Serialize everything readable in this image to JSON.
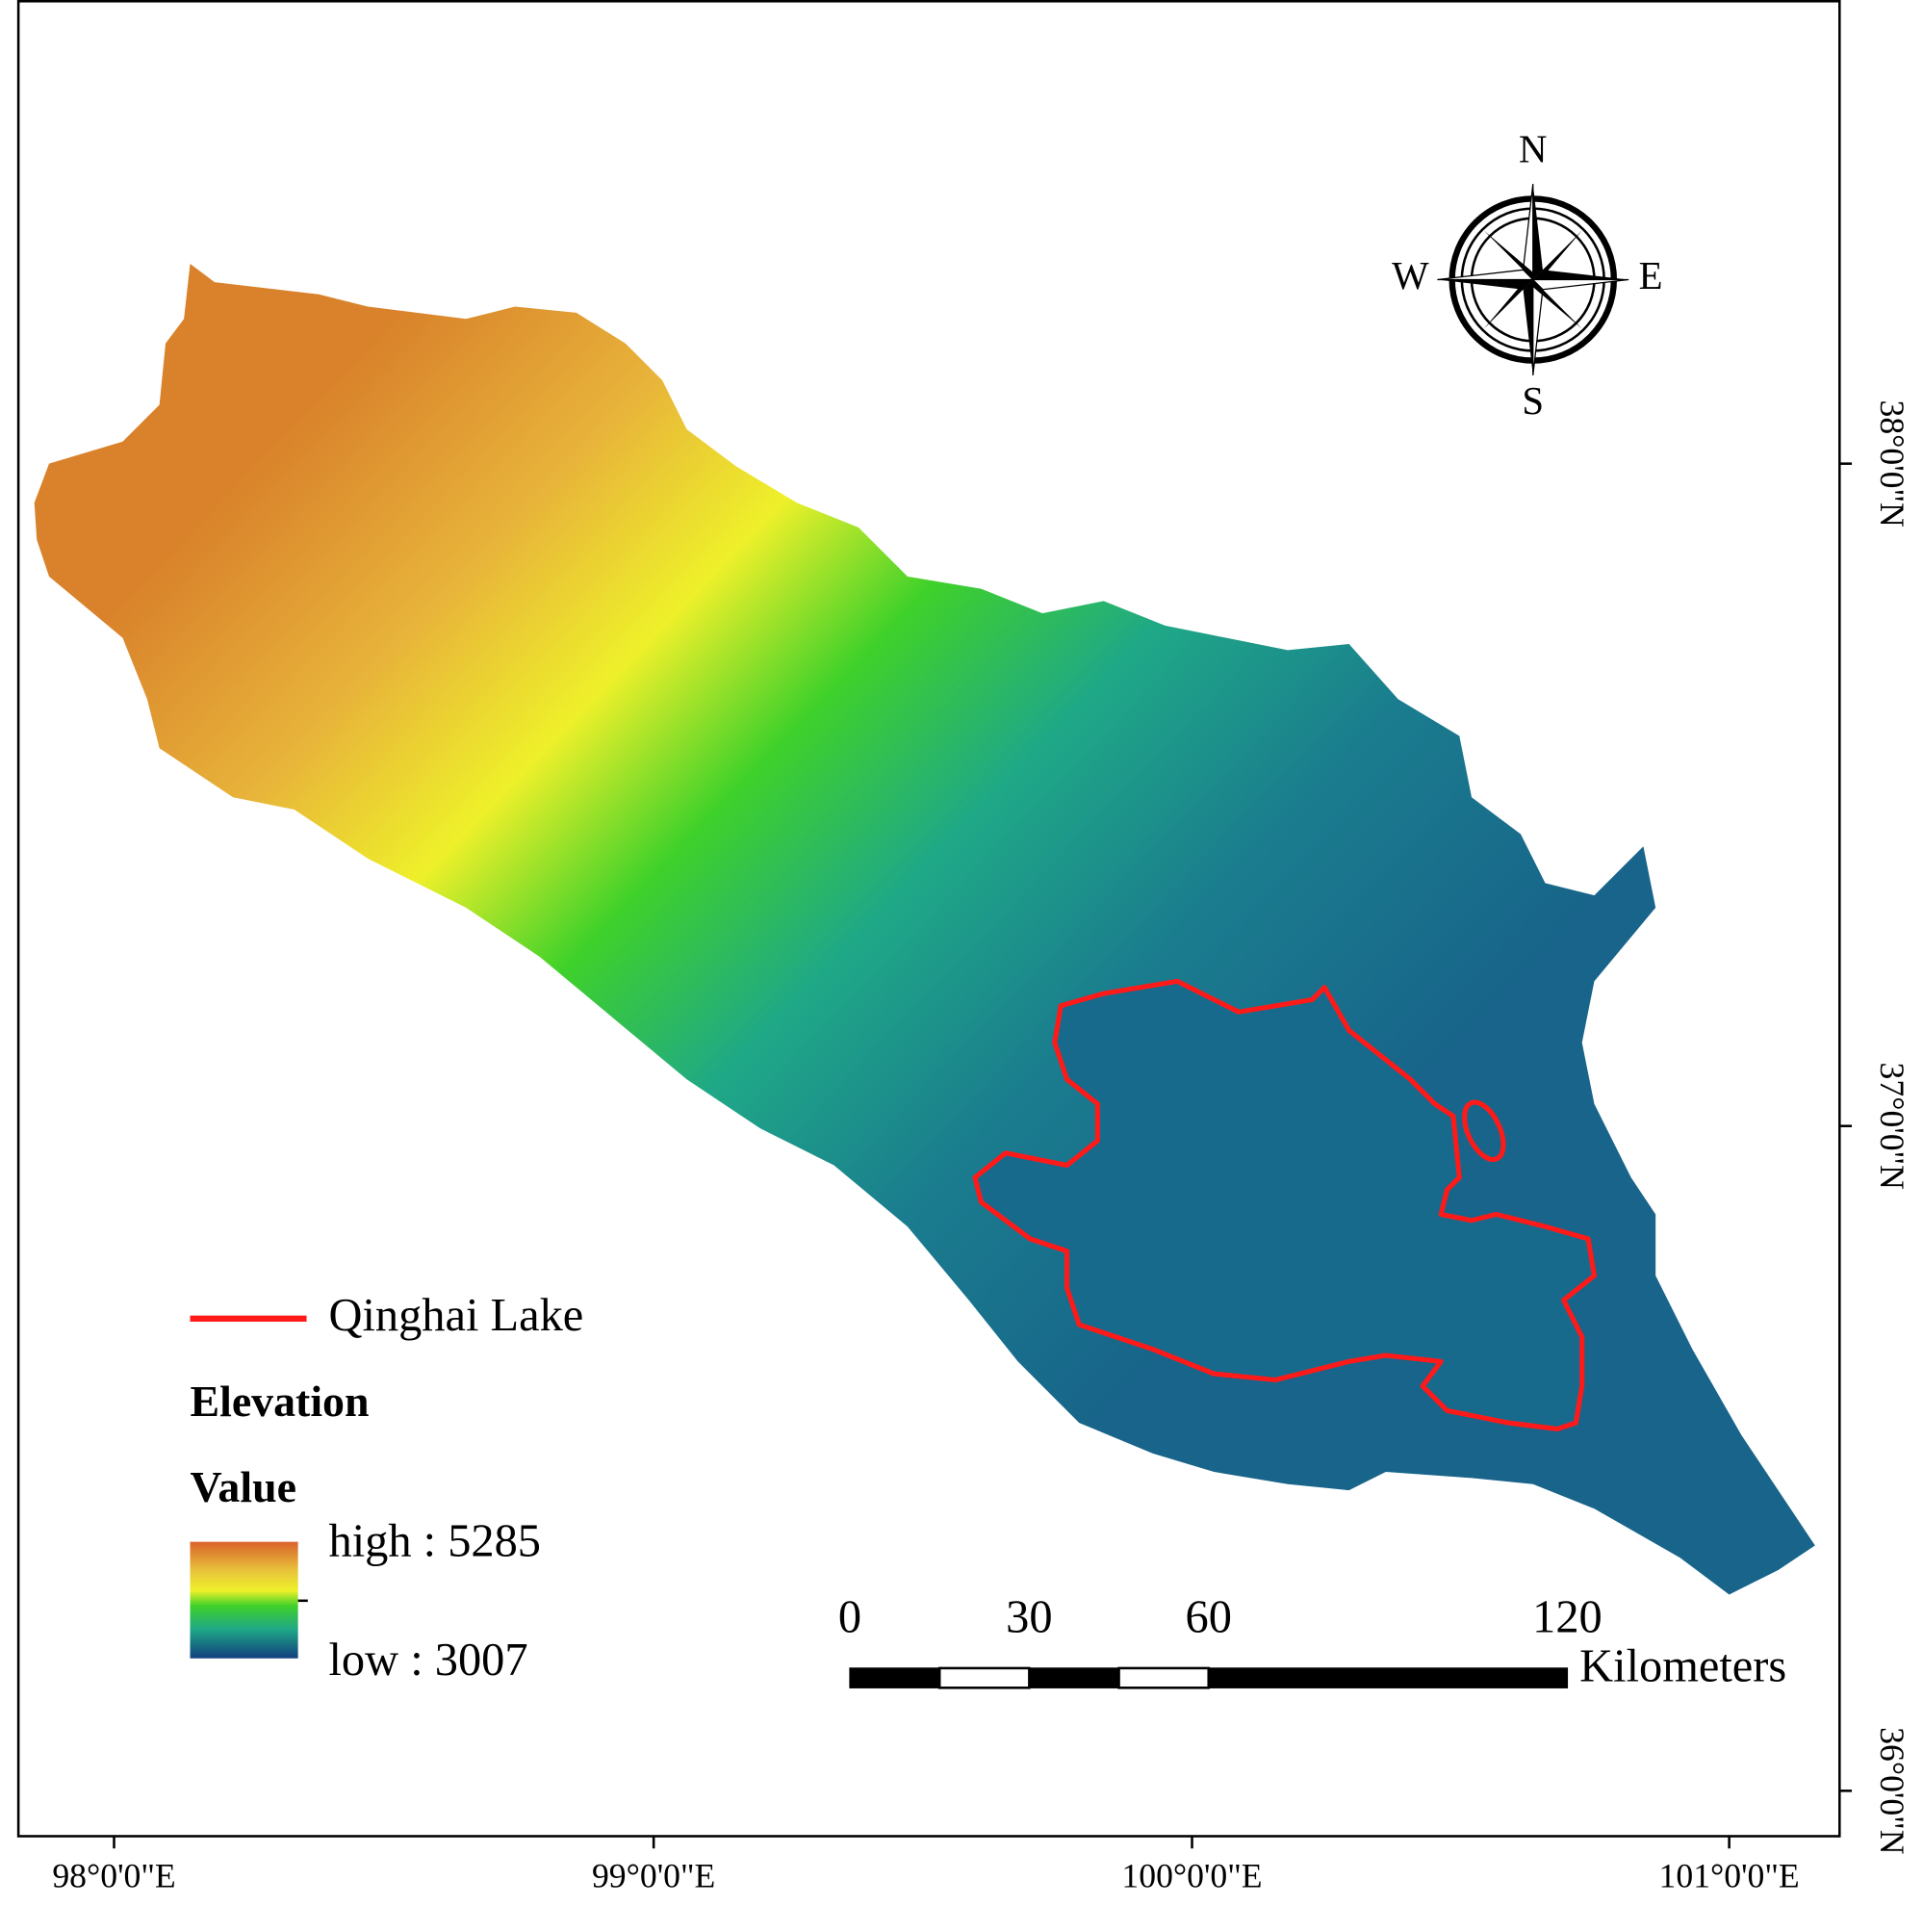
{
  "legend": {
    "lake_label": "Qinghai Lake",
    "title": "Elevation",
    "subtitle": "Value",
    "high": "high : 5285",
    "low": "low : 3007"
  },
  "compass": {
    "n": "N",
    "s": "S",
    "w": "W",
    "e": "E"
  },
  "scale_bar": {
    "ticks": [
      0,
      30,
      60,
      120
    ],
    "unit": "Kilometers"
  },
  "longitudes": [
    "98°0'0\"E",
    "99°0'0\"E",
    "100°0'0\"E",
    "101°0'0\"E"
  ],
  "latitudes": [
    "38°0'0\"N",
    "37°0'0\"N",
    "36°0'0\"N"
  ]
}
